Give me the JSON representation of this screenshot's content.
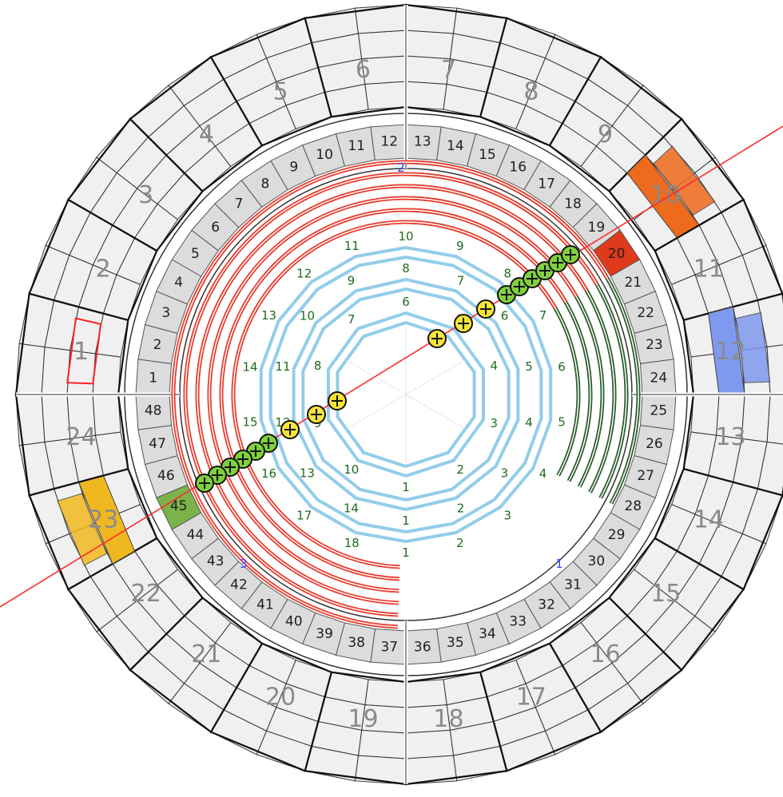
{
  "colors": {
    "cell_fill": "#f0f0f0",
    "mid_cell_fill": "#dcdcdc",
    "cell_stroke": "#333333",
    "track_red": "#e8392b",
    "strip_blue": "#93cdea",
    "strip_green": "#2a5a2a",
    "track_line": "#ff2a2a",
    "hit_yellow": "#f7e43a",
    "hit_green": "#7fd13b"
  },
  "outer_ring": {
    "labels": [
      "1",
      "2",
      "3",
      "4",
      "5",
      "6",
      "7",
      "8",
      "9",
      "10",
      "11",
      "12",
      "13",
      "14",
      "15",
      "16",
      "17",
      "18",
      "19",
      "20",
      "21",
      "22",
      "23",
      "24"
    ],
    "highlighted": [
      {
        "label": "1",
        "color": "#ff2020",
        "style": "outline"
      },
      {
        "label": "10",
        "color": "#ee6a1c",
        "style": "fill"
      },
      {
        "label": "12",
        "color": "#7f99ee",
        "style": "fill"
      },
      {
        "label": "23",
        "color": "#f0b820",
        "style": "fill"
      }
    ]
  },
  "middle_ring": {
    "labels": [
      "1",
      "2",
      "3",
      "4",
      "5",
      "6",
      "7",
      "8",
      "9",
      "10",
      "11",
      "12",
      "13",
      "14",
      "15",
      "16",
      "17",
      "18",
      "19",
      "20",
      "21",
      "22",
      "23",
      "24",
      "25",
      "26",
      "27",
      "28",
      "29",
      "30",
      "31",
      "32",
      "33",
      "34",
      "35",
      "36",
      "37",
      "38",
      "39",
      "40",
      "41",
      "42",
      "43",
      "44",
      "45",
      "46",
      "47",
      "48"
    ],
    "highlighted": [
      {
        "label": "20",
        "color": "#e03a1c"
      },
      {
        "label": "45",
        "color": "#7ab34a"
      }
    ]
  },
  "sectors": [
    "1",
    "2",
    "3"
  ],
  "layer_labels": {
    "strip_ring_1": [
      "1",
      "2",
      "3",
      "4",
      "5",
      "6",
      "7",
      "8",
      "9",
      "10"
    ],
    "strip_ring_2": [
      "1",
      "2",
      "3",
      "4",
      "5",
      "6",
      "7",
      "8",
      "9",
      "10",
      "11",
      "12",
      "13",
      "14"
    ],
    "strip_ring_3": [
      "1",
      "2",
      "3",
      "4",
      "5",
      "6",
      "7",
      "8",
      "9",
      "10",
      "11",
      "12",
      "13",
      "14",
      "15",
      "16",
      "17",
      "18"
    ]
  },
  "track": {
    "hits_inner": 6,
    "hits_outer_upper": 6,
    "hits_outer_lower": 6
  }
}
